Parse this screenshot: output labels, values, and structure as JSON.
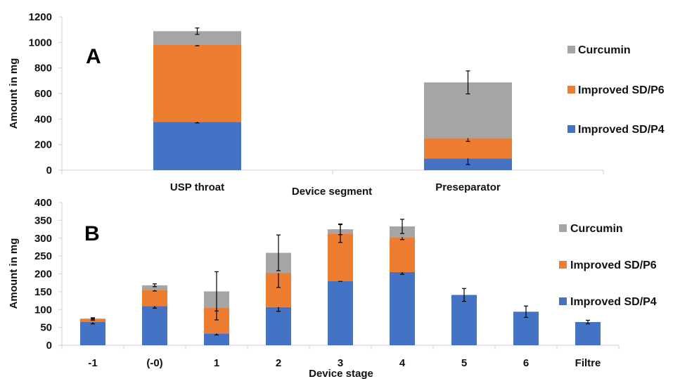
{
  "chart_data": [
    {
      "type": "bar",
      "stacked": true,
      "panel_label": "A",
      "categories": [
        "USP throat",
        "Preseparator"
      ],
      "series": [
        {
          "name": "Improved SD/P4",
          "color": "#4472C4",
          "values": [
            378,
            92
          ],
          "errors": [
            8,
            48
          ]
        },
        {
          "name": "Improved SD/P6",
          "color": "#ED7D31",
          "values": [
            602,
            158
          ],
          "errors": [
            6,
            25
          ]
        },
        {
          "name": "Curcumin",
          "color": "#A5A5A5",
          "values": [
            108,
            437
          ],
          "errors": [
            25,
            90
          ]
        }
      ],
      "xlabel": "Device segment",
      "ylabel": "Amount in mg",
      "ylim": [
        0,
        1200
      ],
      "yticks": [
        "0",
        "200",
        "400",
        "600",
        "800",
        "1000",
        "1200"
      ],
      "legend_order": [
        "Curcumin",
        "Improved SD/P6",
        "Improved SD/P4"
      ],
      "legend_position": "right",
      "grid": false
    },
    {
      "type": "bar",
      "stacked": true,
      "panel_label": "B",
      "categories": [
        "-1",
        "(-0)",
        "1",
        "2",
        "3",
        "4",
        "5",
        "6",
        "Filtre"
      ],
      "series": [
        {
          "name": "Improved SD/P4",
          "color": "#4472C4",
          "values": [
            65,
            110,
            33,
            107,
            180,
            205,
            141,
            94,
            65
          ],
          "errors": [
            5,
            6,
            4,
            12,
            1,
            6,
            18,
            16,
            5
          ]
        },
        {
          "name": "Improved SD/P6",
          "color": "#ED7D31",
          "values": [
            8,
            45,
            73,
            95,
            133,
            98,
            0,
            0,
            0
          ],
          "errors": [
            3,
            3,
            35,
            40,
            25,
            7,
            0,
            0,
            0
          ]
        },
        {
          "name": "Curcumin",
          "color": "#A5A5A5",
          "values": [
            2,
            13,
            45,
            57,
            12,
            30,
            0,
            0,
            0
          ],
          "errors": [
            2,
            4,
            55,
            50,
            15,
            20,
            0,
            0,
            0
          ]
        }
      ],
      "xlabel": "Device stage",
      "ylabel": "Amount in mg",
      "ylim": [
        0,
        400
      ],
      "yticks": [
        "0",
        "50",
        "100",
        "150",
        "200",
        "250",
        "300",
        "350",
        "400"
      ],
      "legend_order": [
        "Curcumin",
        "Improved SD/P6",
        "Improved SD/P4"
      ],
      "legend_position": "right",
      "grid": false
    }
  ]
}
